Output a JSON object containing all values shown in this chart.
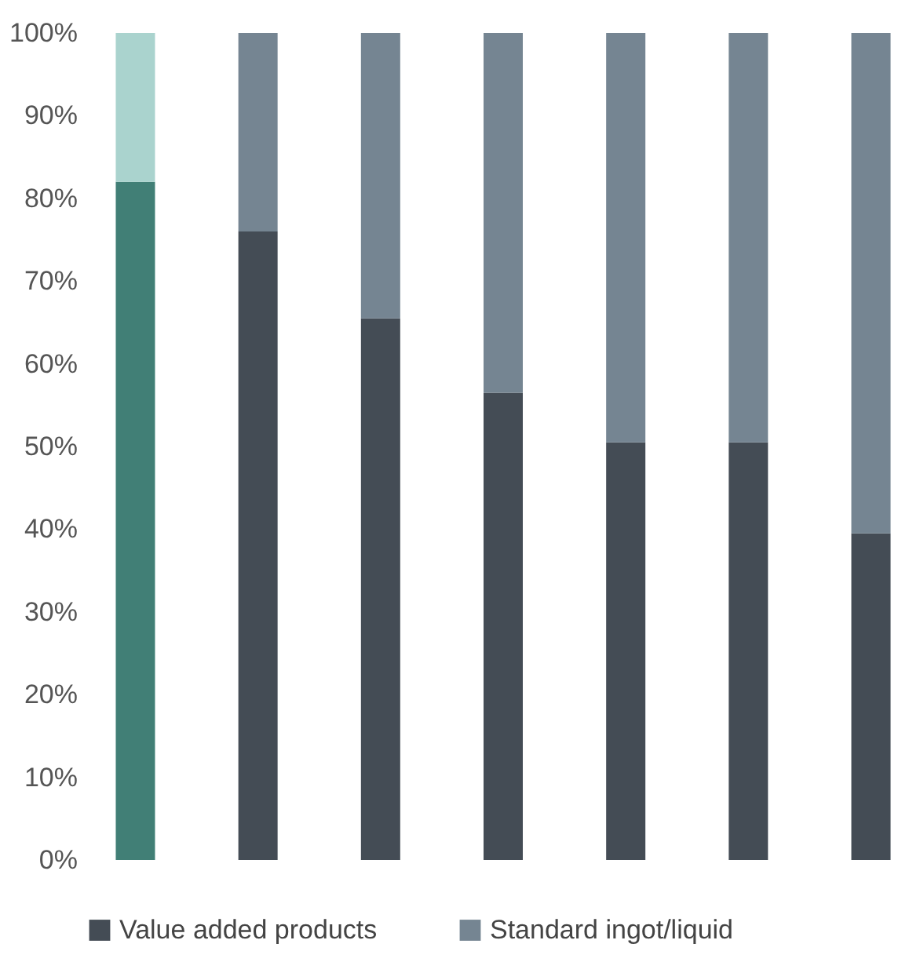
{
  "chart_data": {
    "type": "bar",
    "stacked": true,
    "categories": [
      null,
      null,
      null,
      null,
      null,
      null,
      null
    ],
    "series": [
      {
        "name": "Value added products",
        "color": "#444c55",
        "colors": [
          "#417f76",
          "#444c55",
          "#444c55",
          "#444c55",
          "#444c55",
          "#444c55",
          "#444c55"
        ],
        "values": [
          82,
          76,
          65.5,
          56.5,
          50.5,
          50.5,
          39.5
        ]
      },
      {
        "name": "Standard ingot/liquid",
        "color": "#758592",
        "colors": [
          "#aad3ce",
          "#758592",
          "#758592",
          "#758592",
          "#758592",
          "#758592",
          "#758592"
        ],
        "values": [
          18,
          24,
          34.5,
          43.5,
          49.5,
          49.5,
          60.5
        ]
      }
    ],
    "ylim": [
      0,
      100
    ],
    "yticks": [
      {
        "value": 0,
        "label": "0%"
      },
      {
        "value": 10,
        "label": "10%"
      },
      {
        "value": 20,
        "label": "20%"
      },
      {
        "value": 30,
        "label": "30%"
      },
      {
        "value": 40,
        "label": "40%"
      },
      {
        "value": 50,
        "label": "50%"
      },
      {
        "value": 60,
        "label": "60%"
      },
      {
        "value": 70,
        "label": "70%"
      },
      {
        "value": 80,
        "label": "80%"
      },
      {
        "value": 90,
        "label": "90%"
      },
      {
        "value": 100,
        "label": "100%"
      }
    ],
    "grid": false,
    "legend": "bottom"
  }
}
